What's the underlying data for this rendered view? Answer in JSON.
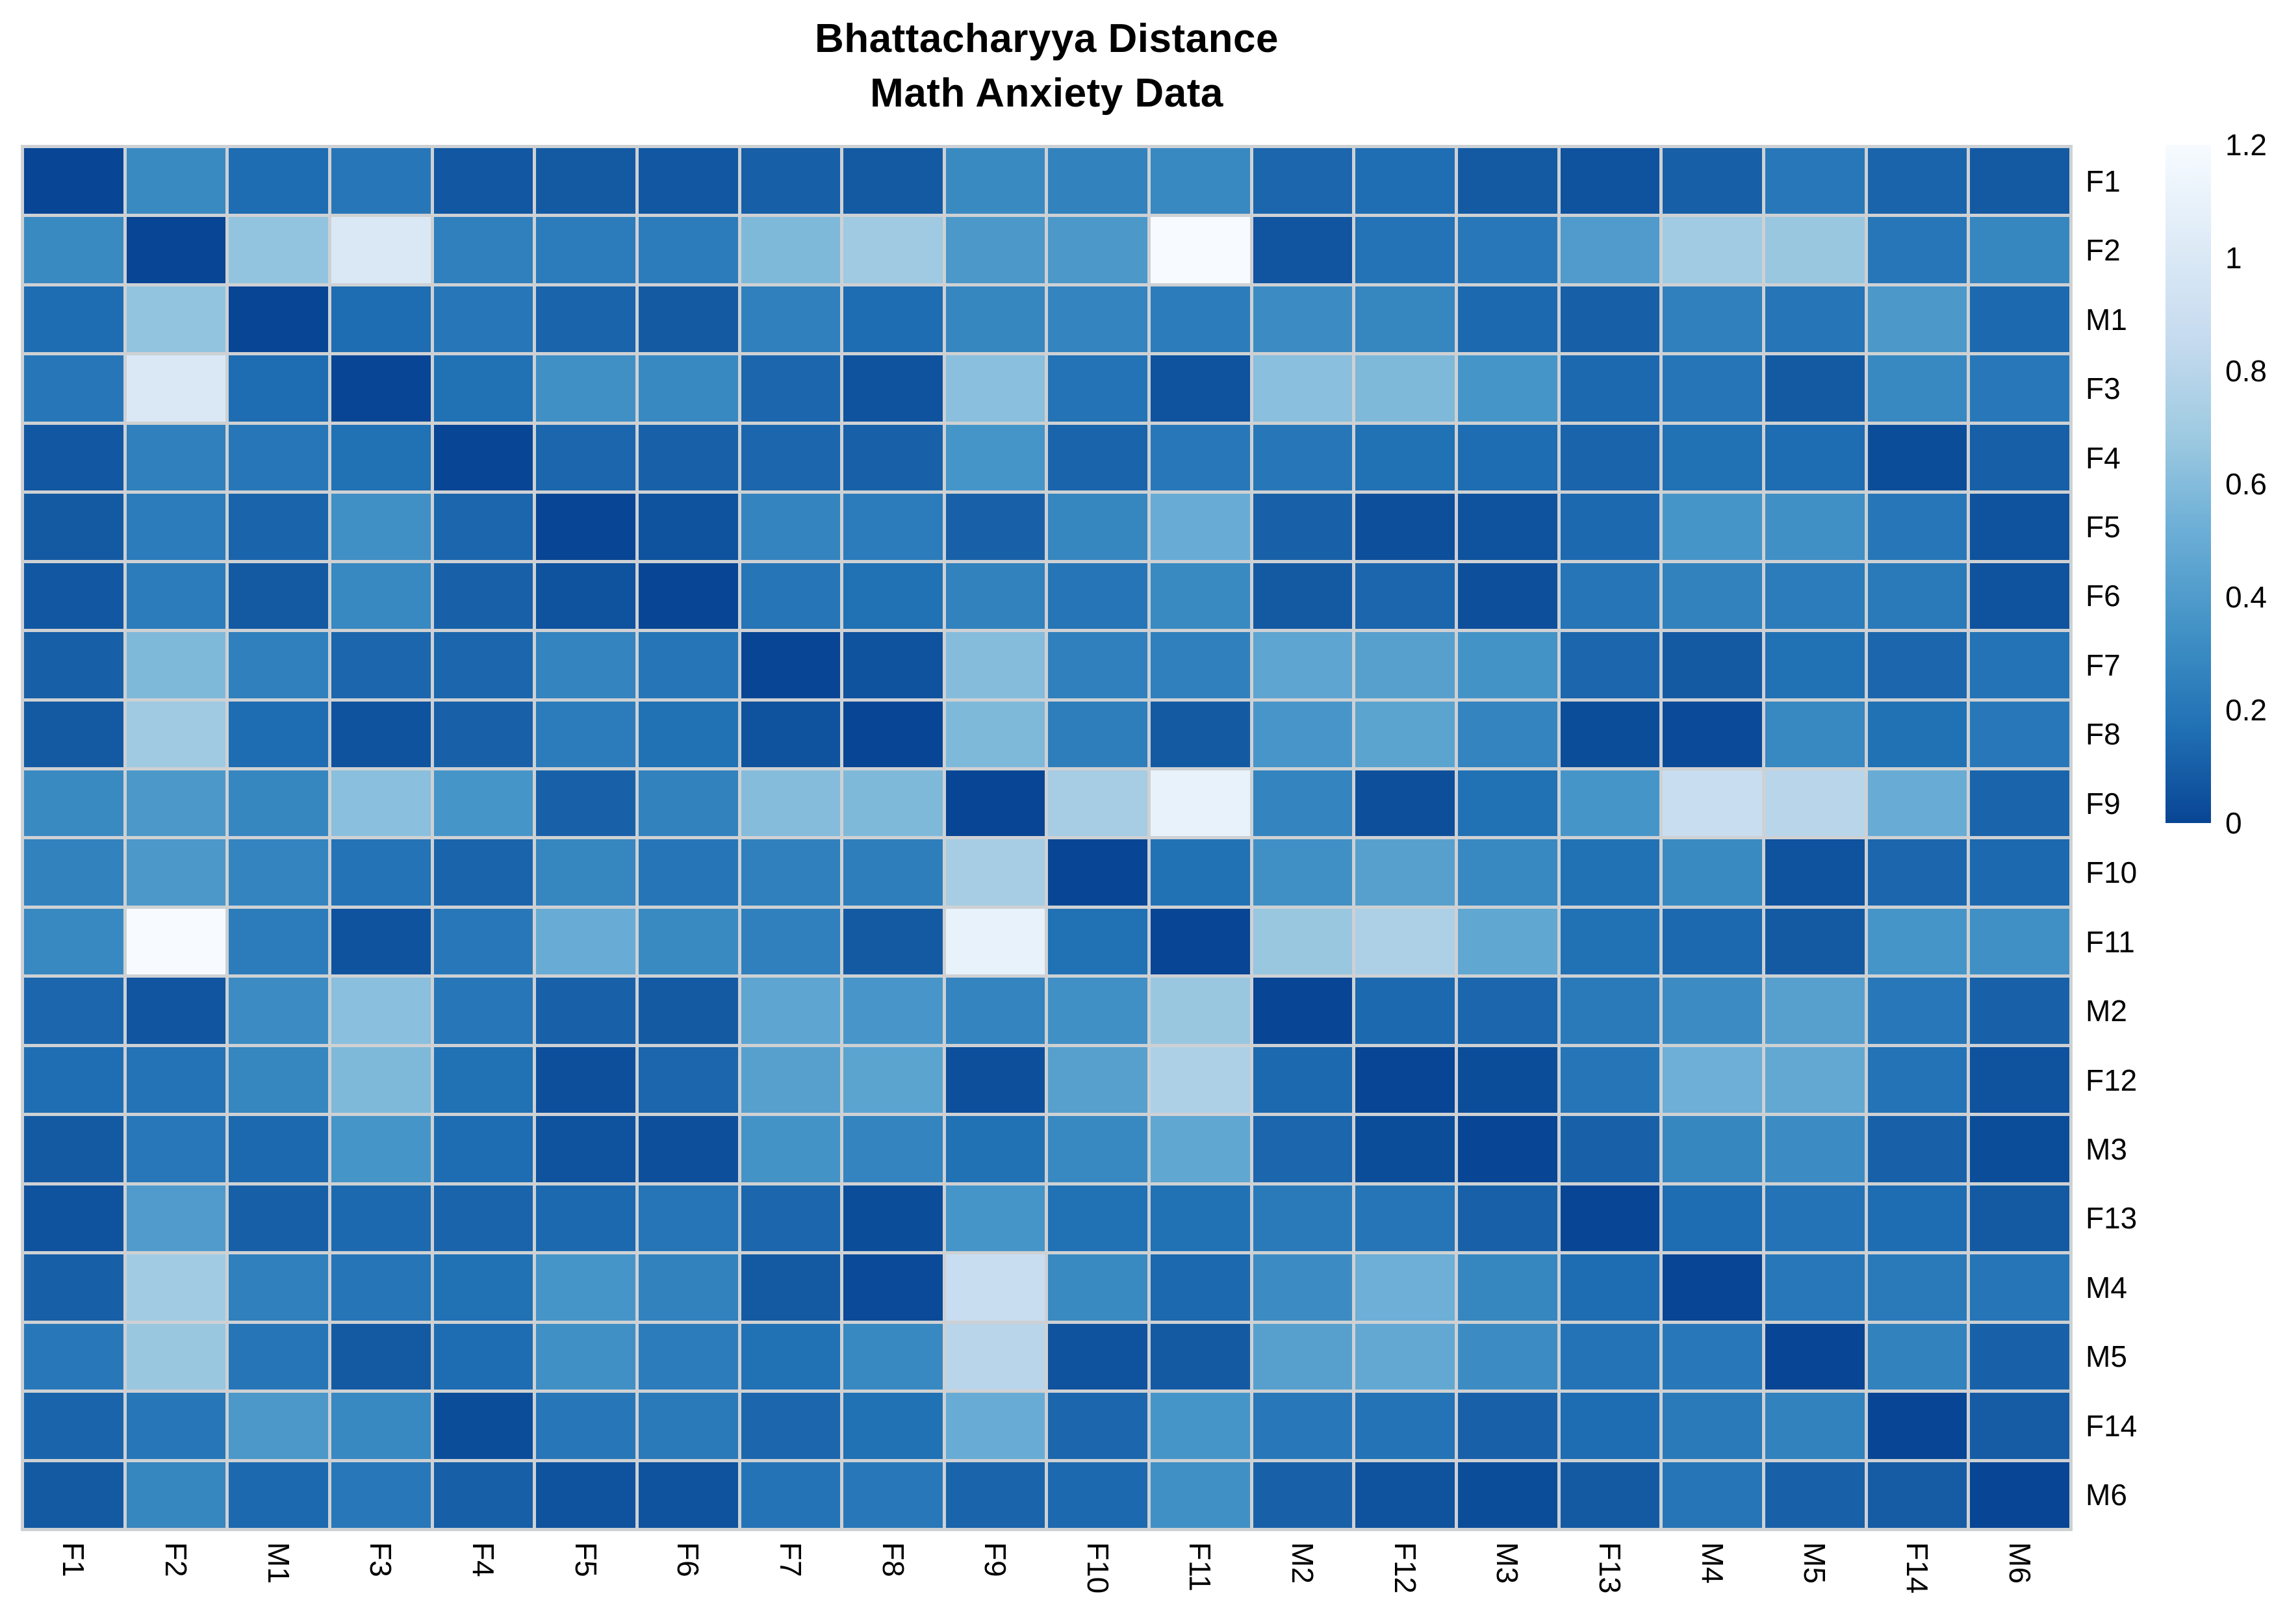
{
  "title": {
    "line1": "Bhattacharyya Distance",
    "line2": "Math Anxiety Data"
  },
  "colors": {
    "background": "#ffffff",
    "gridline": "#ced1d4",
    "text": "#000000"
  },
  "chart_data": {
    "type": "heatmap",
    "title": "Bhattacharyya Distance — Math Anxiety Data",
    "row_labels": [
      "F1",
      "F2",
      "M1",
      "F3",
      "F4",
      "F5",
      "F6",
      "F7",
      "F8",
      "F9",
      "F10",
      "F11",
      "M2",
      "F12",
      "M3",
      "F13",
      "M4",
      "M5",
      "F14",
      "M6"
    ],
    "col_labels": [
      "F1",
      "F2",
      "M1",
      "F3",
      "F4",
      "F5",
      "F6",
      "F7",
      "F8",
      "F9",
      "F10",
      "F11",
      "M2",
      "F12",
      "M3",
      "F13",
      "M4",
      "M5",
      "F14",
      "M6"
    ],
    "value_domain": [
      0,
      1.2
    ],
    "grid_on": true,
    "legend_position": "right",
    "colormap": {
      "name": "blues-reversed-dark-is-low",
      "stops": [
        "#084594",
        "#2171B5",
        "#4292C6",
        "#6BAED6",
        "#9ECAE1",
        "#C6DBEF",
        "#DEEBF7",
        "#F7FBFF"
      ]
    },
    "colorbar_ticks": [
      {
        "label": "1.2",
        "value": 1.2
      },
      {
        "label": "1",
        "value": 1.0
      },
      {
        "label": "0.8",
        "value": 0.8
      },
      {
        "label": "0.6",
        "value": 0.6
      },
      {
        "label": "0.4",
        "value": 0.4
      },
      {
        "label": "0.2",
        "value": 0.2
      },
      {
        "label": "0",
        "value": 0.0
      }
    ],
    "matrix": [
      [
        0,
        0.3,
        0.15,
        0.2,
        0.07,
        0.08,
        0.07,
        0.1,
        0.08,
        0.3,
        0.26,
        0.29,
        0.13,
        0.16,
        0.08,
        0.05,
        0.1,
        0.21,
        0.12,
        0.08
      ],
      [
        0.3,
        0,
        0.65,
        1.0,
        0.25,
        0.23,
        0.23,
        0.58,
        0.69,
        0.38,
        0.38,
        1.2,
        0.06,
        0.18,
        0.21,
        0.4,
        0.7,
        0.67,
        0.2,
        0.28
      ],
      [
        0.15,
        0.65,
        0,
        0.15,
        0.2,
        0.12,
        0.08,
        0.25,
        0.15,
        0.28,
        0.27,
        0.23,
        0.31,
        0.28,
        0.14,
        0.1,
        0.25,
        0.19,
        0.38,
        0.14
      ],
      [
        0.2,
        1.0,
        0.15,
        0,
        0.17,
        0.33,
        0.29,
        0.13,
        0.05,
        0.62,
        0.18,
        0.05,
        0.62,
        0.58,
        0.36,
        0.14,
        0.19,
        0.08,
        0.29,
        0.21
      ],
      [
        0.07,
        0.25,
        0.2,
        0.17,
        0,
        0.13,
        0.11,
        0.13,
        0.11,
        0.36,
        0.12,
        0.21,
        0.2,
        0.17,
        0.15,
        0.12,
        0.17,
        0.15,
        0.03,
        0.1
      ],
      [
        0.08,
        0.23,
        0.12,
        0.33,
        0.13,
        0,
        0.05,
        0.27,
        0.23,
        0.11,
        0.28,
        0.5,
        0.11,
        0.04,
        0.05,
        0.14,
        0.36,
        0.33,
        0.2,
        0.05
      ],
      [
        0.07,
        0.23,
        0.08,
        0.29,
        0.11,
        0.05,
        0,
        0.19,
        0.17,
        0.26,
        0.19,
        0.3,
        0.08,
        0.13,
        0.04,
        0.19,
        0.26,
        0.23,
        0.22,
        0.05
      ],
      [
        0.1,
        0.58,
        0.25,
        0.13,
        0.13,
        0.27,
        0.19,
        0,
        0.05,
        0.6,
        0.25,
        0.25,
        0.46,
        0.43,
        0.35,
        0.13,
        0.08,
        0.17,
        0.13,
        0.18
      ],
      [
        0.08,
        0.69,
        0.15,
        0.05,
        0.11,
        0.23,
        0.17,
        0.05,
        0,
        0.58,
        0.24,
        0.08,
        0.37,
        0.45,
        0.27,
        0.03,
        0.02,
        0.29,
        0.17,
        0.21
      ],
      [
        0.3,
        0.38,
        0.28,
        0.62,
        0.36,
        0.11,
        0.26,
        0.6,
        0.58,
        0,
        0.72,
        1.1,
        0.27,
        0.04,
        0.17,
        0.36,
        0.88,
        0.8,
        0.5,
        0.12
      ],
      [
        0.26,
        0.38,
        0.27,
        0.18,
        0.12,
        0.28,
        0.19,
        0.25,
        0.24,
        0.72,
        0,
        0.17,
        0.33,
        0.43,
        0.29,
        0.17,
        0.3,
        0.05,
        0.13,
        0.14
      ],
      [
        0.29,
        1.2,
        0.23,
        0.05,
        0.21,
        0.5,
        0.3,
        0.25,
        0.08,
        1.1,
        0.17,
        0,
        0.67,
        0.75,
        0.47,
        0.17,
        0.14,
        0.08,
        0.36,
        0.33
      ],
      [
        0.13,
        0.06,
        0.31,
        0.62,
        0.2,
        0.11,
        0.08,
        0.46,
        0.37,
        0.27,
        0.33,
        0.67,
        0,
        0.14,
        0.13,
        0.22,
        0.31,
        0.43,
        0.21,
        0.11
      ],
      [
        0.16,
        0.18,
        0.28,
        0.58,
        0.17,
        0.04,
        0.13,
        0.43,
        0.45,
        0.04,
        0.43,
        0.75,
        0.14,
        0,
        0.03,
        0.19,
        0.52,
        0.48,
        0.18,
        0.05
      ],
      [
        0.08,
        0.21,
        0.14,
        0.36,
        0.15,
        0.05,
        0.04,
        0.35,
        0.27,
        0.17,
        0.29,
        0.47,
        0.13,
        0.03,
        0,
        0.11,
        0.28,
        0.31,
        0.11,
        0.03
      ],
      [
        0.05,
        0.4,
        0.1,
        0.14,
        0.12,
        0.14,
        0.19,
        0.13,
        0.03,
        0.36,
        0.17,
        0.17,
        0.22,
        0.19,
        0.11,
        0,
        0.15,
        0.18,
        0.15,
        0.08
      ],
      [
        0.1,
        0.7,
        0.25,
        0.19,
        0.17,
        0.36,
        0.26,
        0.08,
        0.02,
        0.88,
        0.3,
        0.14,
        0.31,
        0.52,
        0.28,
        0.15,
        0,
        0.21,
        0.22,
        0.19
      ],
      [
        0.21,
        0.67,
        0.19,
        0.08,
        0.15,
        0.33,
        0.23,
        0.17,
        0.29,
        0.8,
        0.05,
        0.08,
        0.43,
        0.48,
        0.31,
        0.18,
        0.21,
        0,
        0.26,
        0.11
      ],
      [
        0.12,
        0.2,
        0.38,
        0.29,
        0.03,
        0.2,
        0.22,
        0.13,
        0.17,
        0.5,
        0.13,
        0.36,
        0.21,
        0.18,
        0.11,
        0.15,
        0.22,
        0.26,
        0,
        0.09
      ],
      [
        0.08,
        0.28,
        0.14,
        0.21,
        0.1,
        0.05,
        0.05,
        0.18,
        0.21,
        0.12,
        0.14,
        0.33,
        0.11,
        0.05,
        0.03,
        0.08,
        0.19,
        0.11,
        0.09,
        0
      ]
    ]
  }
}
